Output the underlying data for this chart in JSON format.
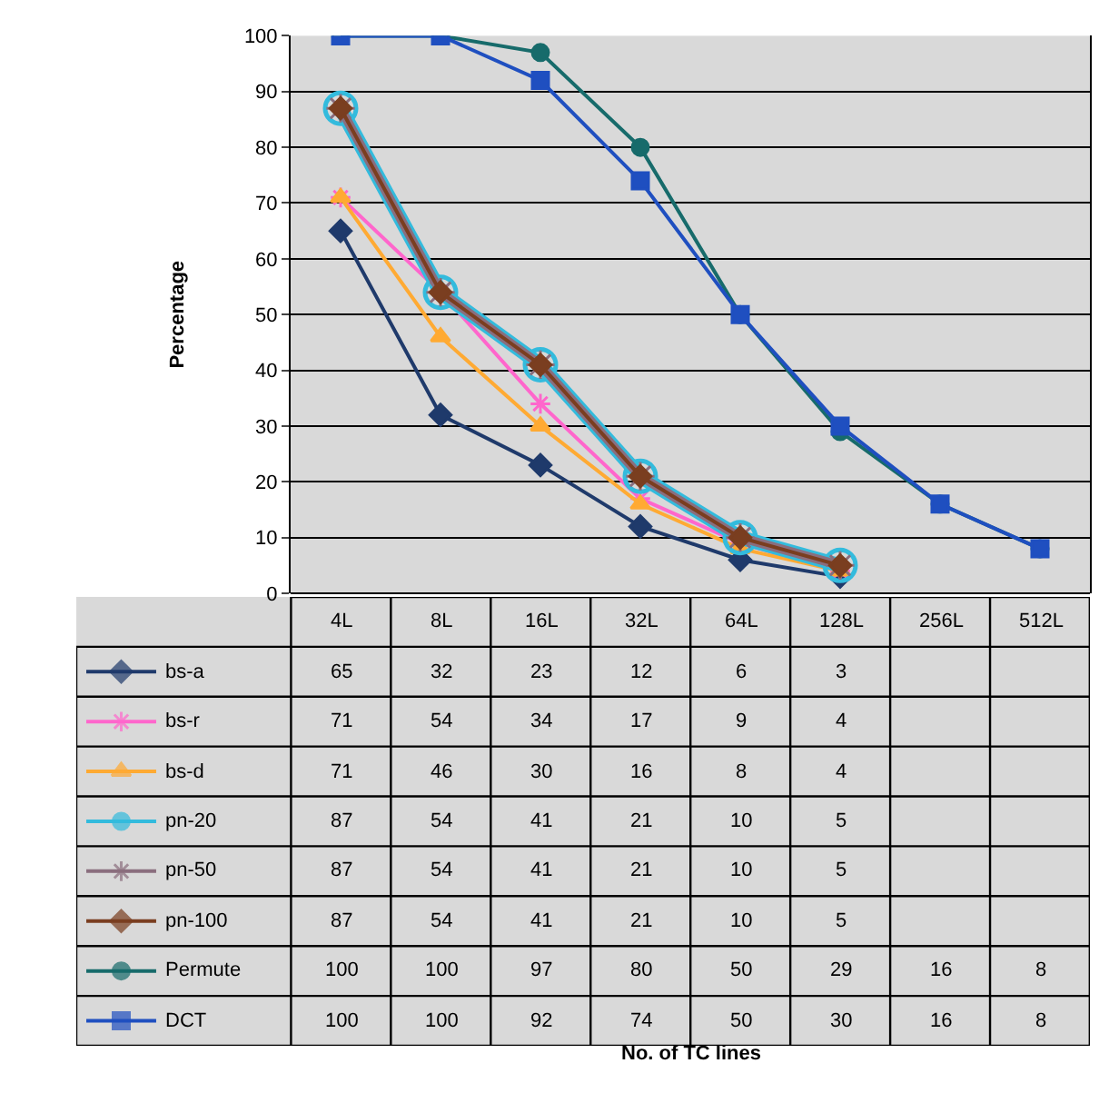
{
  "chart_data": {
    "type": "line",
    "annotations": [
      "No. of TC lines"
    ],
    "ylabel": "Percentage",
    "categories": [
      "4L",
      "8L",
      "16L",
      "32L",
      "64L",
      "128L",
      "256L",
      "512L"
    ],
    "ylim": [
      0,
      100
    ],
    "yticks": [
      0,
      10,
      20,
      30,
      40,
      50,
      60,
      70,
      80,
      90,
      100
    ],
    "grid": "y",
    "legend": "bottom left",
    "data_labels": true,
    "series": [
      {
        "name": "bs-a",
        "color": "#1f3a6b",
        "marker": "diamond",
        "values": [
          65,
          32,
          23,
          12,
          6,
          3,
          null,
          null
        ]
      },
      {
        "name": "bs-r",
        "color": "#ff66cc",
        "marker": "cross",
        "values": [
          71,
          54,
          34,
          17,
          9,
          4,
          null,
          null
        ]
      },
      {
        "name": "bs-d",
        "color": "#ffaa33",
        "marker": "triangle",
        "values": [
          71,
          46,
          30,
          16,
          8,
          4,
          null,
          null
        ]
      },
      {
        "name": "pn-20",
        "color": "#33bbdd",
        "marker": "circle",
        "values": [
          87,
          54,
          41,
          21,
          10,
          5,
          null,
          null
        ]
      },
      {
        "name": "pn-50",
        "color": "#8a6e7e",
        "marker": "cross",
        "values": [
          87,
          54,
          41,
          21,
          10,
          5,
          null,
          null
        ]
      },
      {
        "name": "pn-100",
        "color": "#7a3e20",
        "marker": "diamond",
        "values": [
          87,
          54,
          41,
          21,
          10,
          5,
          null,
          null
        ]
      },
      {
        "name": "Permute",
        "color": "#176b6b",
        "marker": "circle",
        "values": [
          100,
          100,
          97,
          80,
          50,
          29,
          16,
          8
        ]
      },
      {
        "name": "DCT",
        "color": "#1f4fc0",
        "marker": "square",
        "values": [
          100,
          100,
          92,
          74,
          50,
          30,
          16,
          8
        ]
      }
    ]
  }
}
